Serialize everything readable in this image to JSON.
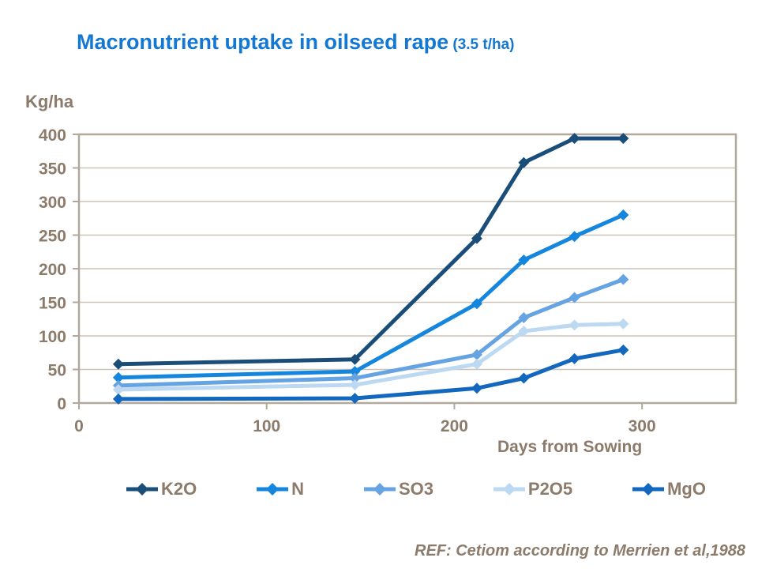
{
  "title": {
    "main": "Macronutrient uptake in oilseed rape",
    "suffix": " (3.5 t/ha)"
  },
  "footer": {
    "ref": "REF: Cetiom according to Merrien et al,1988"
  },
  "chart_data": {
    "type": "line",
    "title": "Macronutrient uptake in oilseed rape (3.5 t/ha)",
    "xlabel": "Days from Sowing",
    "ylabel": "Kg/ha",
    "x": [
      21,
      147,
      212,
      237,
      264,
      290
    ],
    "series": [
      {
        "name": "K2O",
        "color": "#1A4E79",
        "values": [
          58,
          65,
          245,
          358,
          394,
          394
        ]
      },
      {
        "name": "N",
        "color": "#1586DE",
        "values": [
          38,
          47,
          148,
          213,
          248,
          280
        ]
      },
      {
        "name": "SO3",
        "color": "#66A3E3",
        "values": [
          26,
          37,
          72,
          127,
          157,
          184
        ]
      },
      {
        "name": "P2O5",
        "color": "#BDD9F2",
        "values": [
          20,
          27,
          58,
          107,
          116,
          118
        ]
      },
      {
        "name": "MgO",
        "color": "#1267BE",
        "values": [
          6,
          7,
          22,
          37,
          66,
          79
        ]
      }
    ],
    "xlim": [
      0,
      350
    ],
    "ylim": [
      0,
      400
    ],
    "x_ticks": [
      0,
      100,
      200,
      300
    ],
    "y_ticks": [
      0,
      50,
      100,
      150,
      200,
      250,
      300,
      350,
      400
    ],
    "grid": true,
    "marker": "diamond",
    "legend_position": "bottom",
    "colors": {
      "axis_text": "#8C7B6B",
      "grid": "#CCC3B8",
      "border": "#B2A89C",
      "title": "#1478D2"
    }
  }
}
